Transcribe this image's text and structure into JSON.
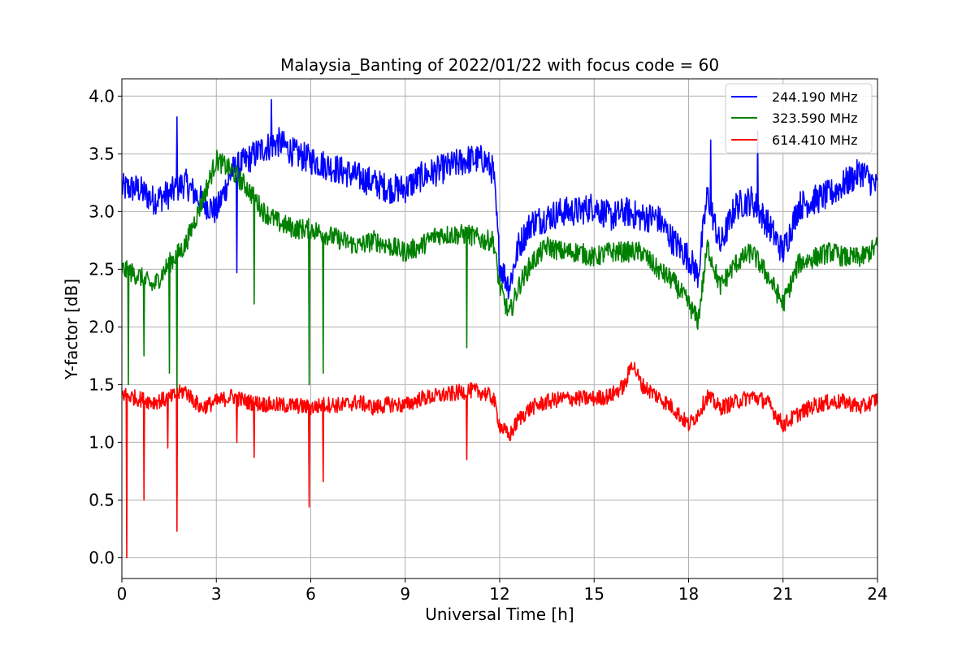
{
  "chart_data": {
    "type": "line",
    "title": "Malaysia_Banting of 2022/01/22 with focus code = 60",
    "xlabel": "Universal Time [h]",
    "ylabel": "Y-factor [dB]",
    "xlim": [
      0,
      24
    ],
    "ylim": [
      -0.18,
      4.15
    ],
    "xticks": [
      0,
      3,
      6,
      9,
      12,
      15,
      18,
      21,
      24
    ],
    "xtick_labels": [
      "0",
      "3",
      "6",
      "9",
      "12",
      "15",
      "18",
      "21",
      "24"
    ],
    "yticks": [
      0.0,
      0.5,
      1.0,
      1.5,
      2.0,
      2.5,
      3.0,
      3.5,
      4.0
    ],
    "ytick_labels": [
      "0.0",
      "0.5",
      "1.0",
      "1.5",
      "2.0",
      "2.5",
      "3.0",
      "3.5",
      "4.0"
    ],
    "grid": true,
    "legend_position": "top-right",
    "series": [
      {
        "name": "244.190 MHz",
        "color": "#0000ff",
        "x": [
          0,
          0.5,
          1,
          1.5,
          2,
          2.5,
          3,
          3.5,
          4,
          4.5,
          5,
          5.5,
          6,
          6.5,
          7,
          7.5,
          8,
          8.5,
          9,
          9.5,
          10,
          10.5,
          11,
          11.5,
          11.8,
          12,
          12.3,
          12.6,
          13,
          13.5,
          14,
          14.5,
          15,
          15.5,
          16,
          16.5,
          17,
          17.5,
          18,
          18.3,
          18.6,
          19,
          19.5,
          20,
          20.5,
          21,
          21.5,
          22,
          22.5,
          23,
          23.5,
          24
        ],
        "values": [
          3.2,
          3.2,
          3.1,
          3.15,
          3.25,
          3.1,
          3.0,
          3.35,
          3.45,
          3.55,
          3.6,
          3.5,
          3.45,
          3.4,
          3.35,
          3.3,
          3.25,
          3.2,
          3.2,
          3.3,
          3.35,
          3.4,
          3.45,
          3.45,
          3.35,
          2.55,
          2.35,
          2.7,
          2.9,
          2.95,
          3.0,
          3.0,
          3.05,
          2.95,
          3.0,
          2.95,
          2.95,
          2.75,
          2.6,
          2.45,
          3.15,
          2.7,
          3.05,
          3.1,
          2.9,
          2.65,
          3.05,
          3.1,
          3.15,
          3.25,
          3.35,
          3.2
        ]
      },
      {
        "name": "323.590 MHz",
        "color": "#008000",
        "x": [
          0,
          0.5,
          1,
          1.5,
          2,
          2.5,
          3,
          3.5,
          4,
          4.5,
          5,
          5.5,
          6,
          6.5,
          7,
          7.5,
          8,
          8.5,
          9,
          9.5,
          10,
          10.5,
          11,
          11.5,
          11.8,
          12,
          12.3,
          12.6,
          13,
          13.5,
          14,
          14.5,
          15,
          15.5,
          16,
          16.5,
          17,
          17.5,
          18,
          18.3,
          18.6,
          19,
          19.5,
          20,
          20.5,
          21,
          21.5,
          22,
          22.5,
          23,
          23.5,
          24
        ],
        "values": [
          2.5,
          2.45,
          2.35,
          2.55,
          2.7,
          3.05,
          3.45,
          3.35,
          3.2,
          3.0,
          2.9,
          2.85,
          2.85,
          2.8,
          2.75,
          2.7,
          2.75,
          2.7,
          2.65,
          2.7,
          2.8,
          2.8,
          2.8,
          2.75,
          2.75,
          2.35,
          2.1,
          2.35,
          2.55,
          2.7,
          2.65,
          2.65,
          2.6,
          2.65,
          2.65,
          2.65,
          2.5,
          2.4,
          2.2,
          2.05,
          2.7,
          2.35,
          2.55,
          2.65,
          2.45,
          2.2,
          2.55,
          2.6,
          2.65,
          2.6,
          2.6,
          2.7
        ]
      },
      {
        "name": "614.410 MHz",
        "color": "#ff0000",
        "x": [
          0,
          0.5,
          1,
          1.5,
          2,
          2.5,
          3,
          3.5,
          4,
          4.5,
          5,
          5.5,
          6,
          6.5,
          7,
          7.5,
          8,
          8.5,
          9,
          9.5,
          10,
          10.5,
          11,
          11.5,
          11.8,
          12,
          12.3,
          12.6,
          13,
          13.5,
          14,
          14.5,
          15,
          15.5,
          16,
          16.2,
          16.5,
          17,
          17.5,
          18,
          18.3,
          18.6,
          19,
          19.5,
          20,
          20.5,
          21,
          21.5,
          22,
          22.5,
          23,
          23.5,
          24
        ],
        "values": [
          1.42,
          1.38,
          1.35,
          1.38,
          1.45,
          1.3,
          1.35,
          1.4,
          1.35,
          1.33,
          1.32,
          1.32,
          1.3,
          1.33,
          1.32,
          1.35,
          1.3,
          1.33,
          1.32,
          1.38,
          1.4,
          1.42,
          1.45,
          1.43,
          1.38,
          1.15,
          1.05,
          1.2,
          1.3,
          1.35,
          1.38,
          1.38,
          1.38,
          1.4,
          1.5,
          1.7,
          1.5,
          1.4,
          1.3,
          1.15,
          1.25,
          1.4,
          1.3,
          1.35,
          1.4,
          1.35,
          1.15,
          1.25,
          1.32,
          1.35,
          1.35,
          1.3,
          1.38
        ]
      }
    ],
    "spikes": [
      {
        "series": 2,
        "x": 0.15,
        "value": 0.0
      },
      {
        "series": 2,
        "x": 0.7,
        "value": 0.5
      },
      {
        "series": 2,
        "x": 1.45,
        "value": 0.95
      },
      {
        "series": 2,
        "x": 1.75,
        "value": 0.23
      },
      {
        "series": 2,
        "x": 3.65,
        "value": 1.0
      },
      {
        "series": 2,
        "x": 4.2,
        "value": 0.87
      },
      {
        "series": 2,
        "x": 5.95,
        "value": 0.44
      },
      {
        "series": 2,
        "x": 6.4,
        "value": 0.66
      },
      {
        "series": 2,
        "x": 10.95,
        "value": 0.85
      },
      {
        "series": 1,
        "x": 0.2,
        "value": 1.5
      },
      {
        "series": 1,
        "x": 0.7,
        "value": 1.75
      },
      {
        "series": 1,
        "x": 1.5,
        "value": 1.6
      },
      {
        "series": 1,
        "x": 1.75,
        "value": 1.4
      },
      {
        "series": 1,
        "x": 4.2,
        "value": 2.2
      },
      {
        "series": 1,
        "x": 5.95,
        "value": 1.5
      },
      {
        "series": 1,
        "x": 6.4,
        "value": 1.6
      },
      {
        "series": 1,
        "x": 10.95,
        "value": 1.82
      },
      {
        "series": 0,
        "x": 1.75,
        "value": 3.82
      },
      {
        "series": 0,
        "x": 3.65,
        "value": 2.47
      },
      {
        "series": 0,
        "x": 4.75,
        "value": 3.97
      },
      {
        "series": 0,
        "x": 18.7,
        "value": 3.62
      },
      {
        "series": 0,
        "x": 20.2,
        "value": 3.7
      }
    ]
  }
}
